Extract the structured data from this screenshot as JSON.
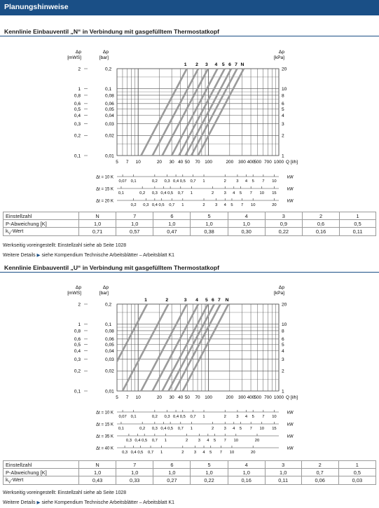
{
  "header": {
    "title": "Planungshinweise"
  },
  "sections": [
    {
      "title": "Kennlinie Einbauventil „N“ in Verbindung mit gasgefülltem Thermostatkopf",
      "chart": {
        "y_left_units": [
          "Δp",
          "[mWS]"
        ],
        "y_mid_units": [
          "Δp",
          "[bar]"
        ],
        "y_right_units": [
          "Δp",
          "[kPa]"
        ],
        "y_ticks": [
          {
            "mws": "2",
            "bar": "0,2",
            "kpa": "20",
            "v": 0.2
          },
          {
            "mws": "1",
            "bar": "0,1",
            "kpa": "10",
            "v": 0.1
          },
          {
            "mws": "0,8",
            "bar": "0,08",
            "kpa": "8",
            "v": 0.08
          },
          {
            "mws": "0,6",
            "bar": "0,06",
            "kpa": "6",
            "v": 0.06
          },
          {
            "mws": "0,5",
            "bar": "0,05",
            "kpa": "5",
            "v": 0.05
          },
          {
            "mws": "0,4",
            "bar": "0,04",
            "kpa": "4",
            "v": 0.04
          },
          {
            "mws": "0,3",
            "bar": "0,03",
            "kpa": "3",
            "v": 0.03
          },
          {
            "mws": "0,2",
            "bar": "0,02",
            "kpa": "2",
            "v": 0.02
          },
          {
            "mws": "0,1",
            "bar": "0,01",
            "kpa": "1",
            "v": 0.01
          }
        ],
        "x_label": "Q [l/h]",
        "x_ticks": [
          {
            "t": "5",
            "v": 5
          },
          {
            "t": "7",
            "v": 7
          },
          {
            "t": "10",
            "v": 10
          },
          {
            "t": "20",
            "v": 20
          },
          {
            "t": "30",
            "v": 30
          },
          {
            "t": "40",
            "v": 40
          },
          {
            "t": "50",
            "v": 50
          },
          {
            "t": "70",
            "v": 70
          },
          {
            "t": "100",
            "v": 100
          },
          {
            "t": "200",
            "v": 200
          },
          {
            "t": "300",
            "v": 300
          },
          {
            "t": "400",
            "v": 400
          },
          {
            "t": "500",
            "v": 500
          },
          {
            "t": "700",
            "v": 700
          },
          {
            "t": "1000",
            "v": 1000
          }
        ],
        "curves": [
          {
            "label": "1",
            "kv": 0.11
          },
          {
            "label": "2",
            "kv": 0.16
          },
          {
            "label": "3",
            "kv": 0.22
          },
          {
            "label": "4",
            "kv": 0.3
          },
          {
            "label": "5",
            "kv": 0.38
          },
          {
            "label": "6",
            "kv": 0.47
          },
          {
            "label": "7",
            "kv": 0.57
          },
          {
            "label": "N",
            "kv": 0.71
          }
        ],
        "power_unit": "kW",
        "power_scales": [
          {
            "label": "Δt = 10 K",
            "dt": 10,
            "ticks": [
              {
                "t": "0,07",
                "v": 0.07
              },
              {
                "t": "0,1",
                "v": 0.1
              },
              {
                "t": "0,2",
                "v": 0.2
              },
              {
                "t": "0,3",
                "v": 0.3
              },
              {
                "t": "0,4",
                "v": 0.4
              },
              {
                "t": "0,5",
                "v": 0.5
              },
              {
                "t": "0,7",
                "v": 0.7
              },
              {
                "t": "1",
                "v": 1
              },
              {
                "t": "2",
                "v": 2
              },
              {
                "t": "3",
                "v": 3
              },
              {
                "t": "4",
                "v": 4
              },
              {
                "t": "5",
                "v": 5
              },
              {
                "t": "7",
                "v": 7
              },
              {
                "t": "10",
                "v": 10
              }
            ]
          },
          {
            "label": "Δt = 15 K",
            "dt": 15,
            "ticks": [
              {
                "t": "0,1",
                "v": 0.1
              },
              {
                "t": "0,2",
                "v": 0.2
              },
              {
                "t": "0,3",
                "v": 0.3
              },
              {
                "t": "0,4",
                "v": 0.4
              },
              {
                "t": "0,5",
                "v": 0.5
              },
              {
                "t": "0,7",
                "v": 0.7
              },
              {
                "t": "1",
                "v": 1
              },
              {
                "t": "2",
                "v": 2
              },
              {
                "t": "3",
                "v": 3
              },
              {
                "t": "4",
                "v": 4
              },
              {
                "t": "5",
                "v": 5
              },
              {
                "t": "7",
                "v": 7
              },
              {
                "t": "10",
                "v": 10
              },
              {
                "t": "15",
                "v": 15
              }
            ]
          },
          {
            "label": "Δt = 20 K",
            "dt": 20,
            "ticks": [
              {
                "t": "0,2",
                "v": 0.2
              },
              {
                "t": "0,3",
                "v": 0.3
              },
              {
                "t": "0,4",
                "v": 0.4
              },
              {
                "t": "0,5",
                "v": 0.5
              },
              {
                "t": "0,7",
                "v": 0.7
              },
              {
                "t": "1",
                "v": 1
              },
              {
                "t": "2",
                "v": 2
              },
              {
                "t": "3",
                "v": 3
              },
              {
                "t": "4",
                "v": 4
              },
              {
                "t": "5",
                "v": 5
              },
              {
                "t": "7",
                "v": 7
              },
              {
                "t": "10",
                "v": 10
              },
              {
                "t": "20",
                "v": 20
              }
            ]
          }
        ]
      },
      "table": {
        "rows": [
          {
            "label": "Einstellzahl",
            "sub": "",
            "after": "",
            "cells": [
              "N",
              "7",
              "6",
              "5",
              "4",
              "3",
              "2",
              "1"
            ]
          },
          {
            "label": "P-Abweichung [K]",
            "sub": "",
            "after": "",
            "cells": [
              "1,0",
              "1,0",
              "1,0",
              "1,0",
              "1,0",
              "0,9",
              "0,6",
              "0,5"
            ]
          },
          {
            "label": "k",
            "sub": "V",
            "after": "-Wert",
            "cells": [
              "0,71",
              "0,57",
              "0,47",
              "0,38",
              "0,30",
              "0,22",
              "0,16",
              "0,11"
            ]
          }
        ]
      },
      "note1": "Werkseitig voreingestellt: Einstellzahl siehe ab Seite 1028",
      "note2_pre": "Weitere Details",
      "note2_post": "siehe Kompendium Technische Arbeitsblätter – Arbeitsblatt K1"
    },
    {
      "title": "Kennlinie Einbauventil „U“ in Verbindung mit gasgefülltem Thermostatkopf",
      "chart": {
        "y_left_units": [
          "Δp",
          "[mWS]"
        ],
        "y_mid_units": [
          "Δp",
          "[bar]"
        ],
        "y_right_units": [
          "Δp",
          "[kPa]"
        ],
        "y_ticks": [
          {
            "mws": "2",
            "bar": "0,2",
            "kpa": "20",
            "v": 0.2
          },
          {
            "mws": "1",
            "bar": "0,1",
            "kpa": "10",
            "v": 0.1
          },
          {
            "mws": "0,8",
            "bar": "0,08",
            "kpa": "8",
            "v": 0.08
          },
          {
            "mws": "0,6",
            "bar": "0,06",
            "kpa": "6",
            "v": 0.06
          },
          {
            "mws": "0,5",
            "bar": "0,05",
            "kpa": "5",
            "v": 0.05
          },
          {
            "mws": "0,4",
            "bar": "0,04",
            "kpa": "4",
            "v": 0.04
          },
          {
            "mws": "0,3",
            "bar": "0,03",
            "kpa": "3",
            "v": 0.03
          },
          {
            "mws": "0,2",
            "bar": "0,02",
            "kpa": "2",
            "v": 0.02
          },
          {
            "mws": "0,1",
            "bar": "0,01",
            "kpa": "1",
            "v": 0.01
          }
        ],
        "x_label": "Q [l/h]",
        "x_ticks": [
          {
            "t": "5",
            "v": 5
          },
          {
            "t": "7",
            "v": 7
          },
          {
            "t": "10",
            "v": 10
          },
          {
            "t": "20",
            "v": 20
          },
          {
            "t": "30",
            "v": 30
          },
          {
            "t": "40",
            "v": 40
          },
          {
            "t": "50",
            "v": 50
          },
          {
            "t": "70",
            "v": 70
          },
          {
            "t": "100",
            "v": 100
          },
          {
            "t": "200",
            "v": 200
          },
          {
            "t": "300",
            "v": 300
          },
          {
            "t": "400",
            "v": 400
          },
          {
            "t": "500",
            "v": 500
          },
          {
            "t": "700",
            "v": 700
          },
          {
            "t": "1000",
            "v": 1000
          }
        ],
        "curves": [
          {
            "label": "1",
            "kv": 0.03
          },
          {
            "label": "2",
            "kv": 0.06
          },
          {
            "label": "3",
            "kv": 0.11
          },
          {
            "label": "4",
            "kv": 0.16
          },
          {
            "label": "5",
            "kv": 0.22
          },
          {
            "label": "6",
            "kv": 0.27
          },
          {
            "label": "7",
            "kv": 0.33
          },
          {
            "label": "N",
            "kv": 0.43
          }
        ],
        "power_unit": "kW",
        "power_scales": [
          {
            "label": "Δt = 10 K",
            "dt": 10,
            "ticks": [
              {
                "t": "0,07",
                "v": 0.07
              },
              {
                "t": "0,1",
                "v": 0.1
              },
              {
                "t": "0,2",
                "v": 0.2
              },
              {
                "t": "0,3",
                "v": 0.3
              },
              {
                "t": "0,4",
                "v": 0.4
              },
              {
                "t": "0,5",
                "v": 0.5
              },
              {
                "t": "0,7",
                "v": 0.7
              },
              {
                "t": "1",
                "v": 1
              },
              {
                "t": "2",
                "v": 2
              },
              {
                "t": "3",
                "v": 3
              },
              {
                "t": "4",
                "v": 4
              },
              {
                "t": "5",
                "v": 5
              },
              {
                "t": "7",
                "v": 7
              },
              {
                "t": "10",
                "v": 10
              }
            ]
          },
          {
            "label": "Δt = 15 K",
            "dt": 15,
            "ticks": [
              {
                "t": "0,1",
                "v": 0.1
              },
              {
                "t": "0,2",
                "v": 0.2
              },
              {
                "t": "0,3",
                "v": 0.3
              },
              {
                "t": "0,4",
                "v": 0.4
              },
              {
                "t": "0,5",
                "v": 0.5
              },
              {
                "t": "0,7",
                "v": 0.7
              },
              {
                "t": "1",
                "v": 1
              },
              {
                "t": "2",
                "v": 2
              },
              {
                "t": "3",
                "v": 3
              },
              {
                "t": "4",
                "v": 4
              },
              {
                "t": "5",
                "v": 5
              },
              {
                "t": "7",
                "v": 7
              },
              {
                "t": "10",
                "v": 10
              },
              {
                "t": "15",
                "v": 15
              }
            ]
          },
          {
            "label": "Δt = 35 K",
            "dt": 35,
            "ticks": [
              {
                "t": "0,3",
                "v": 0.3
              },
              {
                "t": "0,4",
                "v": 0.4
              },
              {
                "t": "0,5",
                "v": 0.5
              },
              {
                "t": "0,7",
                "v": 0.7
              },
              {
                "t": "1",
                "v": 1
              },
              {
                "t": "2",
                "v": 2
              },
              {
                "t": "3",
                "v": 3
              },
              {
                "t": "4",
                "v": 4
              },
              {
                "t": "5",
                "v": 5
              },
              {
                "t": "7",
                "v": 7
              },
              {
                "t": "10",
                "v": 10
              },
              {
                "t": "20",
                "v": 20
              }
            ]
          },
          {
            "label": "Δt = 40 K",
            "dt": 40,
            "ticks": [
              {
                "t": "0,3",
                "v": 0.3
              },
              {
                "t": "0,4",
                "v": 0.4
              },
              {
                "t": "0,5",
                "v": 0.5
              },
              {
                "t": "0,7",
                "v": 0.7
              },
              {
                "t": "1",
                "v": 1
              },
              {
                "t": "2",
                "v": 2
              },
              {
                "t": "3",
                "v": 3
              },
              {
                "t": "4",
                "v": 4
              },
              {
                "t": "5",
                "v": 5
              },
              {
                "t": "7",
                "v": 7
              },
              {
                "t": "10",
                "v": 10
              },
              {
                "t": "20",
                "v": 20
              }
            ]
          }
        ]
      },
      "table": {
        "rows": [
          {
            "label": "Einstellzahl",
            "sub": "",
            "after": "",
            "cells": [
              "N",
              "7",
              "6",
              "5",
              "4",
              "3",
              "2",
              "1"
            ]
          },
          {
            "label": "P-Abweichung [K]",
            "sub": "",
            "after": "",
            "cells": [
              "1,0",
              "1,0",
              "1,0",
              "1,0",
              "1,0",
              "1,0",
              "0,7",
              "0,5"
            ]
          },
          {
            "label": "k",
            "sub": "V",
            "after": "-Wert",
            "cells": [
              "0,43",
              "0,33",
              "0,27",
              "0,22",
              "0,16",
              "0,11",
              "0,06",
              "0,03"
            ]
          }
        ]
      },
      "note1": "Werkseitig voreingestellt: Einstellzahl siehe ab Seite 1028",
      "note2_pre": "Weitere Details",
      "note2_post": "siehe Kompendium Technische Arbeitsblätter – Arbeitsblatt K1"
    }
  ],
  "colors": {
    "header": "#1a4f86",
    "curve": "#9a9a9a",
    "grid": "#555555"
  }
}
